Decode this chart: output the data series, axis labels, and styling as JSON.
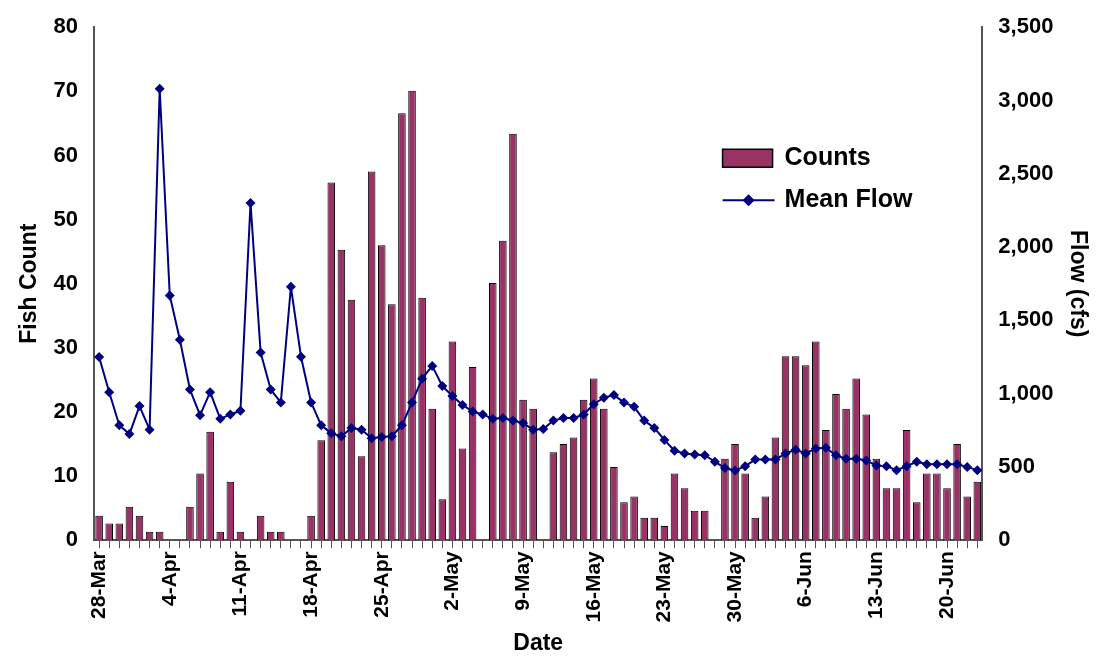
{
  "chart_data": {
    "type": "bar",
    "xlabel": "Date",
    "ylabel": "Fish Count",
    "y2label": "Flow (cfs)",
    "categories": [
      "28-Mar",
      null,
      null,
      null,
      null,
      null,
      null,
      "4-Apr",
      null,
      null,
      null,
      null,
      null,
      null,
      "11-Apr",
      null,
      null,
      null,
      null,
      null,
      null,
      "18-Apr",
      null,
      null,
      null,
      null,
      null,
      null,
      "25-Apr",
      null,
      null,
      null,
      null,
      null,
      null,
      "2-May",
      null,
      null,
      null,
      null,
      null,
      null,
      "9-May",
      null,
      null,
      null,
      null,
      null,
      null,
      "16-May",
      null,
      null,
      null,
      null,
      null,
      null,
      "23-May",
      null,
      null,
      null,
      null,
      null,
      null,
      "30-May",
      null,
      null,
      null,
      null,
      null,
      null,
      "6-Jun",
      null,
      null,
      null,
      null,
      null,
      null,
      "13-Jun",
      null,
      null,
      null,
      null,
      null,
      null,
      "20-Jun",
      null,
      null,
      null
    ],
    "series": [
      {
        "name": "Counts",
        "color": "#993366",
        "values": [
          3.8,
          2.6,
          2.6,
          5.2,
          3.8,
          1.3,
          1.3,
          null,
          null,
          5.2,
          10.4,
          16.9,
          1.3,
          9.1,
          1.3,
          null,
          3.8,
          1.3,
          1.3,
          null,
          null,
          3.8,
          15.6,
          55.8,
          45.3,
          37.5,
          13.1,
          57.5,
          46,
          36.8,
          66.6,
          70.1,
          37.8,
          20.5,
          6.4,
          31,
          14.3,
          27,
          null,
          40.1,
          46.7,
          63.4,
          21.9,
          20.5,
          null,
          13.7,
          15,
          16,
          21.9,
          25.2,
          20.5,
          11.4,
          5.9,
          6.8,
          3.5,
          3.5,
          2.2,
          10.4,
          8.1,
          4.6,
          4.6,
          null,
          12.7,
          15,
          10.4,
          3.5,
          6.8,
          16,
          28.7,
          28.7,
          27.3,
          31,
          17.2,
          22.8,
          20.5,
          25.2,
          19.6,
          12.7,
          8.1,
          8.1,
          17.2,
          5.9,
          10.4,
          10.4,
          8.1,
          15,
          6.8,
          9.1
        ]
      },
      {
        "name": "Mean Flow",
        "type": "line",
        "axis": "y2",
        "color": "#000080",
        "marker": "diamond",
        "values": [
          1250,
          1010,
          784,
          724,
          915,
          754,
          3080,
          1669,
          1368,
          1028,
          853,
          1010,
          828,
          858,
          883,
          2300,
          1281,
          1028,
          940,
          1729,
          1251,
          940,
          784,
          729,
          709,
          766,
          754,
          696,
          704,
          709,
          784,
          940,
          1102,
          1189,
          1052,
          983,
          923,
          878,
          858,
          828,
          834,
          816,
          799,
          754,
          759,
          816,
          834,
          834,
          858,
          928,
          972,
          990,
          940,
          910,
          816,
          766,
          684,
          610,
          592,
          584,
          580,
          535,
          493,
          475,
          505,
          550,
          550,
          550,
          592,
          617,
          592,
          625,
          630,
          580,
          555,
          555,
          543,
          510,
          505,
          478,
          505,
          535,
          518,
          518,
          518,
          518,
          500,
          478
        ]
      }
    ],
    "ylim": [
      0,
      80
    ],
    "yticks": [
      0,
      10,
      20,
      30,
      40,
      50,
      60,
      70,
      80
    ],
    "y2lim": [
      0,
      3500
    ],
    "y2ticks": [
      0,
      {
        "value": 500,
        "label": "500"
      },
      {
        "value": 1000,
        "label": "1,000"
      },
      {
        "value": 1500,
        "label": "1,500"
      },
      {
        "value": 2000,
        "label": "2,000"
      },
      {
        "value": 2500,
        "label": "2,500"
      },
      {
        "value": 3000,
        "label": "3,000"
      },
      {
        "value": 3500,
        "label": "3,500"
      }
    ],
    "legend": "top right",
    "grid": false
  }
}
